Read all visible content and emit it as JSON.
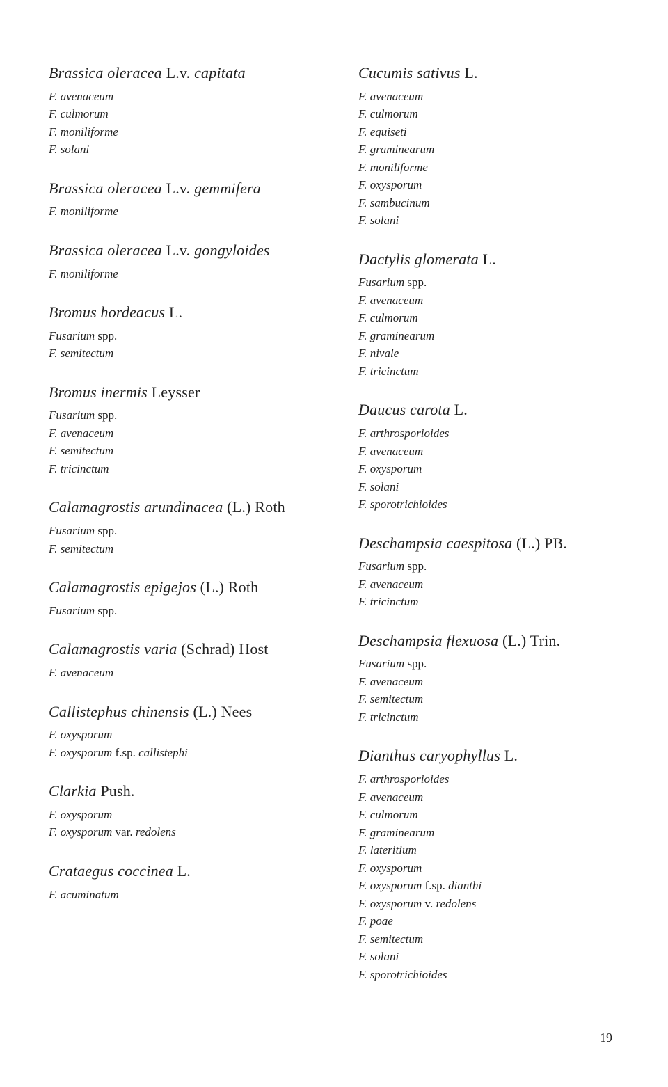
{
  "page_number": "19",
  "left_column": [
    {
      "host": [
        {
          "text": "Brassica oleracea",
          "italic": true
        },
        {
          "text": " L.v. ",
          "italic": false
        },
        {
          "text": "capitata",
          "italic": true
        }
      ],
      "species": [
        [
          {
            "text": "F. avenaceum",
            "italic": true
          }
        ],
        [
          {
            "text": "F. culmorum",
            "italic": true
          }
        ],
        [
          {
            "text": "F. moniliforme",
            "italic": true
          }
        ],
        [
          {
            "text": "F. solani",
            "italic": true
          }
        ]
      ]
    },
    {
      "host": [
        {
          "text": "Brassica oleracea",
          "italic": true
        },
        {
          "text": " L.v. ",
          "italic": false
        },
        {
          "text": "gemmifera",
          "italic": true
        }
      ],
      "species": [
        [
          {
            "text": "F. moniliforme",
            "italic": true
          }
        ]
      ]
    },
    {
      "host": [
        {
          "text": "Brassica oleracea",
          "italic": true
        },
        {
          "text": " L.v. ",
          "italic": false
        },
        {
          "text": "gongyloides",
          "italic": true
        }
      ],
      "species": [
        [
          {
            "text": "F. moniliforme",
            "italic": true
          }
        ]
      ]
    },
    {
      "host": [
        {
          "text": "Bromus hordeacus",
          "italic": true
        },
        {
          "text": " L.",
          "italic": false
        }
      ],
      "species": [
        [
          {
            "text": "Fusarium",
            "italic": true
          },
          {
            "text": " spp.",
            "italic": false
          }
        ],
        [
          {
            "text": "F. semitectum",
            "italic": true
          }
        ]
      ]
    },
    {
      "host": [
        {
          "text": "Bromus inermis",
          "italic": true
        },
        {
          "text": " Leysser",
          "italic": false
        }
      ],
      "species": [
        [
          {
            "text": "Fusarium",
            "italic": true
          },
          {
            "text": " spp.",
            "italic": false
          }
        ],
        [
          {
            "text": "F. avenaceum",
            "italic": true
          }
        ],
        [
          {
            "text": "F. semitectum",
            "italic": true
          }
        ],
        [
          {
            "text": "F. tricinctum",
            "italic": true
          }
        ]
      ]
    },
    {
      "host": [
        {
          "text": "Calamagrostis arundinacea",
          "italic": true
        },
        {
          "text": " (L.) Roth",
          "italic": false
        }
      ],
      "species": [
        [
          {
            "text": "Fusarium",
            "italic": true
          },
          {
            "text": " spp.",
            "italic": false
          }
        ],
        [
          {
            "text": "F. semitectum",
            "italic": true
          }
        ]
      ]
    },
    {
      "host": [
        {
          "text": "Calamagrostis epigejos",
          "italic": true
        },
        {
          "text": " (L.) Roth",
          "italic": false
        }
      ],
      "species": [
        [
          {
            "text": "Fusarium",
            "italic": true
          },
          {
            "text": " spp.",
            "italic": false
          }
        ]
      ]
    },
    {
      "host": [
        {
          "text": "Calamagrostis varia",
          "italic": true
        },
        {
          "text": " (Schrad) Host",
          "italic": false
        }
      ],
      "species": [
        [
          {
            "text": "F. avenaceum",
            "italic": true
          }
        ]
      ]
    },
    {
      "host": [
        {
          "text": "Callistephus chinensis",
          "italic": true
        },
        {
          "text": " (L.) Nees",
          "italic": false
        }
      ],
      "species": [
        [
          {
            "text": "F. oxysporum",
            "italic": true
          }
        ],
        [
          {
            "text": "F. oxysporum",
            "italic": true
          },
          {
            "text": " f.sp. ",
            "italic": false
          },
          {
            "text": "callistephi",
            "italic": true
          }
        ]
      ]
    },
    {
      "host": [
        {
          "text": "Clarkia",
          "italic": true
        },
        {
          "text": " Push.",
          "italic": false
        }
      ],
      "species": [
        [
          {
            "text": "F. oxysporum",
            "italic": true
          }
        ],
        [
          {
            "text": "F. oxysporum",
            "italic": true
          },
          {
            "text": " var. ",
            "italic": false
          },
          {
            "text": "redolens",
            "italic": true
          }
        ]
      ]
    },
    {
      "host": [
        {
          "text": "Crataegus coccinea",
          "italic": true
        },
        {
          "text": " L.",
          "italic": false
        }
      ],
      "species": [
        [
          {
            "text": "F. acuminatum",
            "italic": true
          }
        ]
      ]
    }
  ],
  "right_column": [
    {
      "host": [
        {
          "text": "Cucumis sativus",
          "italic": true
        },
        {
          "text": " L.",
          "italic": false
        }
      ],
      "species": [
        [
          {
            "text": "F. avenaceum",
            "italic": true
          }
        ],
        [
          {
            "text": "F. culmorum",
            "italic": true
          }
        ],
        [
          {
            "text": "F. equiseti",
            "italic": true
          }
        ],
        [
          {
            "text": "F. graminearum",
            "italic": true
          }
        ],
        [
          {
            "text": "F. moniliforme",
            "italic": true
          }
        ],
        [
          {
            "text": "F. oxysporum",
            "italic": true
          }
        ],
        [
          {
            "text": "F. sambucinum",
            "italic": true
          }
        ],
        [
          {
            "text": "F. solani",
            "italic": true
          }
        ]
      ]
    },
    {
      "host": [
        {
          "text": "Dactylis glomerata",
          "italic": true
        },
        {
          "text": " L.",
          "italic": false
        }
      ],
      "species": [
        [
          {
            "text": "Fusarium",
            "italic": true
          },
          {
            "text": " spp.",
            "italic": false
          }
        ],
        [
          {
            "text": "F. avenaceum",
            "italic": true
          }
        ],
        [
          {
            "text": "F. culmorum",
            "italic": true
          }
        ],
        [
          {
            "text": "F. graminearum",
            "italic": true
          }
        ],
        [
          {
            "text": "F. nivale",
            "italic": true
          }
        ],
        [
          {
            "text": "F. tricinctum",
            "italic": true
          }
        ]
      ]
    },
    {
      "host": [
        {
          "text": "Daucus carota",
          "italic": true
        },
        {
          "text": " L.",
          "italic": false
        }
      ],
      "species": [
        [
          {
            "text": "F. arthrosporioides",
            "italic": true
          }
        ],
        [
          {
            "text": "F. avenaceum",
            "italic": true
          }
        ],
        [
          {
            "text": "F. oxysporum",
            "italic": true
          }
        ],
        [
          {
            "text": "F. solani",
            "italic": true
          }
        ],
        [
          {
            "text": "F. sporotrichioides",
            "italic": true
          }
        ]
      ]
    },
    {
      "host": [
        {
          "text": "Deschampsia caespitosa",
          "italic": true
        },
        {
          "text": " (L.) PB.",
          "italic": false
        }
      ],
      "species": [
        [
          {
            "text": "Fusarium",
            "italic": true
          },
          {
            "text": " spp.",
            "italic": false
          }
        ],
        [
          {
            "text": "F. avenaceum",
            "italic": true
          }
        ],
        [
          {
            "text": "F. tricinctum",
            "italic": true
          }
        ]
      ]
    },
    {
      "host": [
        {
          "text": "Deschampsia flexuosa",
          "italic": true
        },
        {
          "text": " (L.) Trin.",
          "italic": false
        }
      ],
      "species": [
        [
          {
            "text": "Fusarium",
            "italic": true
          },
          {
            "text": " spp.",
            "italic": false
          }
        ],
        [
          {
            "text": "F. avenaceum",
            "italic": true
          }
        ],
        [
          {
            "text": "F. semitectum",
            "italic": true
          }
        ],
        [
          {
            "text": "F. tricinctum",
            "italic": true
          }
        ]
      ]
    },
    {
      "host": [
        {
          "text": "Dianthus caryophyllus",
          "italic": true
        },
        {
          "text": " L.",
          "italic": false
        }
      ],
      "species": [
        [
          {
            "text": "F. arthrosporioides",
            "italic": true
          }
        ],
        [
          {
            "text": "F. avenaceum",
            "italic": true
          }
        ],
        [
          {
            "text": "F. culmorum",
            "italic": true
          }
        ],
        [
          {
            "text": "F. graminearum",
            "italic": true
          }
        ],
        [
          {
            "text": "F. lateritium",
            "italic": true
          }
        ],
        [
          {
            "text": "F. oxysporum",
            "italic": true
          }
        ],
        [
          {
            "text": "F. oxysporum",
            "italic": true
          },
          {
            "text": " f.sp. ",
            "italic": false
          },
          {
            "text": "dianthi",
            "italic": true
          }
        ],
        [
          {
            "text": "F. oxysporum",
            "italic": true
          },
          {
            "text": " v. ",
            "italic": false
          },
          {
            "text": "redolens",
            "italic": true
          }
        ],
        [
          {
            "text": "F. poae",
            "italic": true
          }
        ],
        [
          {
            "text": "F. semitectum",
            "italic": true
          }
        ],
        [
          {
            "text": "F. solani",
            "italic": true
          }
        ],
        [
          {
            "text": "F. sporotrichioides",
            "italic": true
          }
        ]
      ]
    }
  ]
}
